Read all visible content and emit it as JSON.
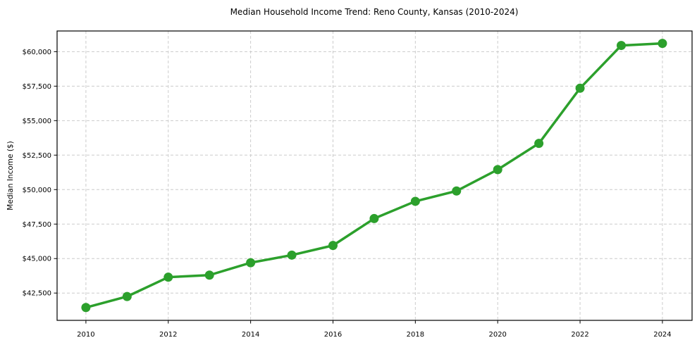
{
  "chart_data": {
    "type": "line",
    "title": "Median Household Income Trend: Reno County, Kansas (2010-2024)",
    "xlabel": "",
    "ylabel": "Median Income ($)",
    "x": [
      2010,
      2011,
      2012,
      2013,
      2014,
      2015,
      2016,
      2017,
      2018,
      2019,
      2020,
      2021,
      2022,
      2023,
      2024
    ],
    "values": [
      41450,
      42250,
      43650,
      43800,
      44700,
      45250,
      45950,
      47900,
      49150,
      49900,
      51450,
      53350,
      57350,
      60450,
      60600
    ],
    "xlim": [
      2009.3,
      2024.72
    ],
    "ylim": [
      40520,
      61500
    ],
    "xticks": {
      "values": [
        2010,
        2012,
        2014,
        2016,
        2018,
        2020,
        2022,
        2024
      ],
      "labels": [
        "2010",
        "2012",
        "2014",
        "2016",
        "2018",
        "2020",
        "2022",
        "2024"
      ]
    },
    "yticks": {
      "values": [
        42500,
        45000,
        47500,
        50000,
        52500,
        55000,
        57500,
        60000
      ],
      "labels": [
        "$42,500",
        "$45,000",
        "$47,500",
        "$50,000",
        "$52,500",
        "$55,000",
        "$57,500",
        "$60,000"
      ]
    },
    "grid": true,
    "grid_style": "dashed",
    "legend": "none",
    "marker": "circle",
    "colors": {
      "line": "#2ca02c",
      "marker": "#2ca02c",
      "grid": "#cccccc",
      "spine": "#000000",
      "text": "#000000",
      "background": "#ffffff"
    }
  }
}
